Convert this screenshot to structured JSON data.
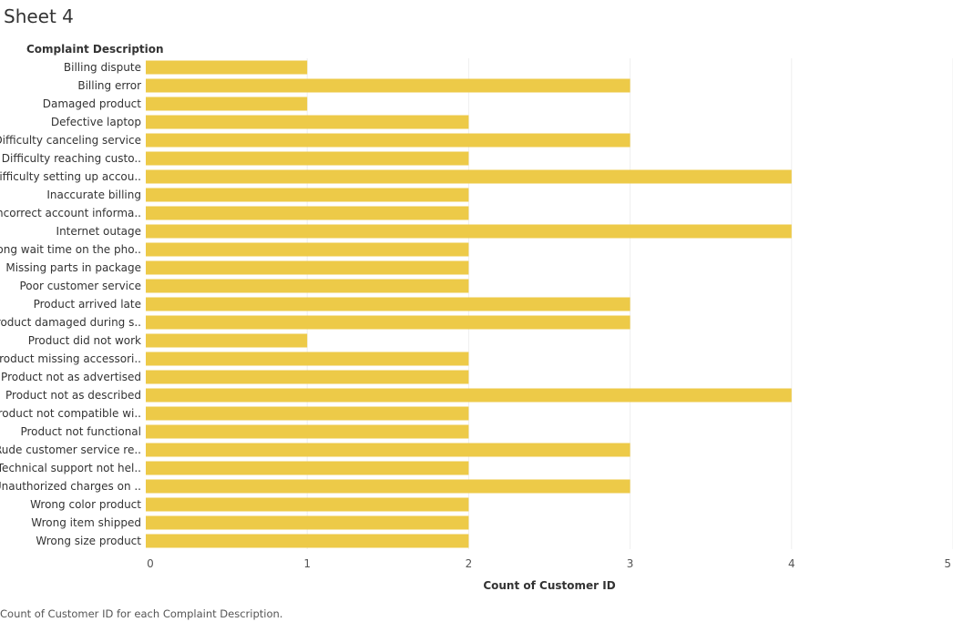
{
  "sheet_title": "Sheet 4",
  "caption": "Count of Customer ID for each Complaint Description.",
  "colors": {
    "bar": "#EDCA48",
    "grid": "#eeeeee"
  },
  "chart_data": {
    "type": "bar",
    "orientation": "horizontal",
    "row_header": "Complaint Description",
    "xlabel": "Count of Customer ID",
    "xlim": [
      0,
      5
    ],
    "x_ticks": [
      0,
      1,
      2,
      3,
      4,
      5
    ],
    "grid": true,
    "categories": [
      "Billing dispute",
      "Billing error",
      "Damaged product",
      "Defective laptop",
      "Difficulty canceling service",
      "Difficulty reaching custo..",
      "Difficulty setting up accou..",
      "Inaccurate billing",
      "Incorrect account informa..",
      "Internet outage",
      "Long wait time on the pho..",
      "Missing parts in package",
      "Poor customer service",
      "Product arrived late",
      "Product damaged during s..",
      "Product did not work",
      "Product missing accessori..",
      "Product not as advertised",
      "Product not as described",
      "Product not compatible wi..",
      "Product not functional",
      "Rude customer service re..",
      "Technical support not hel..",
      "Unauthorized charges on ..",
      "Wrong color product",
      "Wrong item shipped",
      "Wrong size product"
    ],
    "values": [
      1,
      3,
      1,
      2,
      3,
      2,
      4,
      2,
      2,
      4,
      2,
      2,
      2,
      3,
      3,
      1,
      2,
      2,
      4,
      2,
      2,
      3,
      2,
      3,
      2,
      2,
      2
    ]
  }
}
